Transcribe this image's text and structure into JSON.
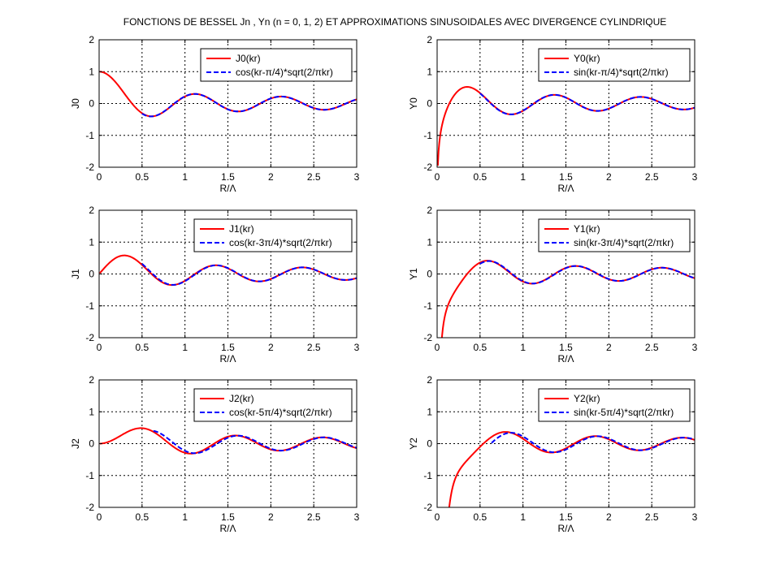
{
  "figure_title": "FONCTIONS DE BESSEL Jn , Yn (n = 0, 1, 2) ET APPROXIMATIONS SINUSOIDALES AVEC DIVERGENCE CYLINDRIQUE",
  "colors": {
    "exact": "#ff0000",
    "approx": "#0000ff",
    "grid": "#000000",
    "background": "#ffffff"
  },
  "chart_data": [
    {
      "type": "line",
      "order": 0,
      "kind": "J",
      "xlabel": "R/Λ",
      "ylabel": "J0",
      "xlim": [
        0,
        3
      ],
      "ylim": [
        -2,
        2
      ],
      "grid": true,
      "legend_position": "top-right",
      "xticks": [
        "0",
        "0.5",
        "1",
        "1.5",
        "2",
        "2.5",
        "3"
      ],
      "yticks": [
        "-2",
        "-1",
        "0",
        "1",
        "2"
      ],
      "series": [
        {
          "name": "J0(kr)",
          "style": "solid",
          "color": "#ff0000"
        },
        {
          "name": "cos(kr-π/4)*sqrt(2/πkr)",
          "style": "dashed",
          "color": "#0000ff"
        }
      ]
    },
    {
      "type": "line",
      "order": 0,
      "kind": "Y",
      "xlabel": "R/Λ",
      "ylabel": "Y0",
      "xlim": [
        0,
        3
      ],
      "ylim": [
        -2,
        2
      ],
      "grid": true,
      "legend_position": "top-right",
      "xticks": [
        "0",
        "0.5",
        "1",
        "1.5",
        "2",
        "2.5",
        "3"
      ],
      "yticks": [
        "-2",
        "-1",
        "0",
        "1",
        "2"
      ],
      "series": [
        {
          "name": "Y0(kr)",
          "style": "solid",
          "color": "#ff0000"
        },
        {
          "name": "sin(kr-π/4)*sqrt(2/πkr)",
          "style": "dashed",
          "color": "#0000ff"
        }
      ]
    },
    {
      "type": "line",
      "order": 1,
      "kind": "J",
      "xlabel": "R/Λ",
      "ylabel": "J1",
      "xlim": [
        0,
        3
      ],
      "ylim": [
        -2,
        2
      ],
      "grid": true,
      "legend_position": "top-right",
      "xticks": [
        "0",
        "0.5",
        "1",
        "1.5",
        "2",
        "2.5",
        "3"
      ],
      "yticks": [
        "-2",
        "-1",
        "0",
        "1",
        "2"
      ],
      "series": [
        {
          "name": "J1(kr)",
          "style": "solid",
          "color": "#ff0000"
        },
        {
          "name": "cos(kr-3π/4)*sqrt(2/πkr)",
          "style": "dashed",
          "color": "#0000ff"
        }
      ]
    },
    {
      "type": "line",
      "order": 1,
      "kind": "Y",
      "xlabel": "R/Λ",
      "ylabel": "Y1",
      "xlim": [
        0,
        3
      ],
      "ylim": [
        -2,
        2
      ],
      "grid": true,
      "legend_position": "top-right",
      "xticks": [
        "0",
        "0.5",
        "1",
        "1.5",
        "2",
        "2.5",
        "3"
      ],
      "yticks": [
        "-2",
        "-1",
        "0",
        "1",
        "2"
      ],
      "series": [
        {
          "name": "Y1(kr)",
          "style": "solid",
          "color": "#ff0000"
        },
        {
          "name": "sin(kr-3π/4)*sqrt(2/πkr)",
          "style": "dashed",
          "color": "#0000ff"
        }
      ]
    },
    {
      "type": "line",
      "order": 2,
      "kind": "J",
      "xlabel": "R/Λ",
      "ylabel": "J2",
      "xlim": [
        0,
        3
      ],
      "ylim": [
        -2,
        2
      ],
      "grid": true,
      "legend_position": "top-right",
      "xticks": [
        "0",
        "0.5",
        "1",
        "1.5",
        "2",
        "2.5",
        "3"
      ],
      "yticks": [
        "-2",
        "-1",
        "0",
        "1",
        "2"
      ],
      "series": [
        {
          "name": "J2(kr)",
          "style": "solid",
          "color": "#ff0000"
        },
        {
          "name": "cos(kr-5π/4)*sqrt(2/πkr)",
          "style": "dashed",
          "color": "#0000ff"
        }
      ]
    },
    {
      "type": "line",
      "order": 2,
      "kind": "Y",
      "xlabel": "R/Λ",
      "ylabel": "Y2",
      "xlim": [
        0,
        3
      ],
      "ylim": [
        -2,
        2
      ],
      "grid": true,
      "legend_position": "top-right",
      "xticks": [
        "0",
        "0.5",
        "1",
        "1.5",
        "2",
        "2.5",
        "3"
      ],
      "yticks": [
        "-2",
        "-1",
        "0",
        "1",
        "2"
      ],
      "series": [
        {
          "name": "Y2(kr)",
          "style": "solid",
          "color": "#ff0000"
        },
        {
          "name": "sin(kr-5π/4)*sqrt(2/πkr)",
          "style": "dashed",
          "color": "#0000ff"
        }
      ]
    }
  ]
}
